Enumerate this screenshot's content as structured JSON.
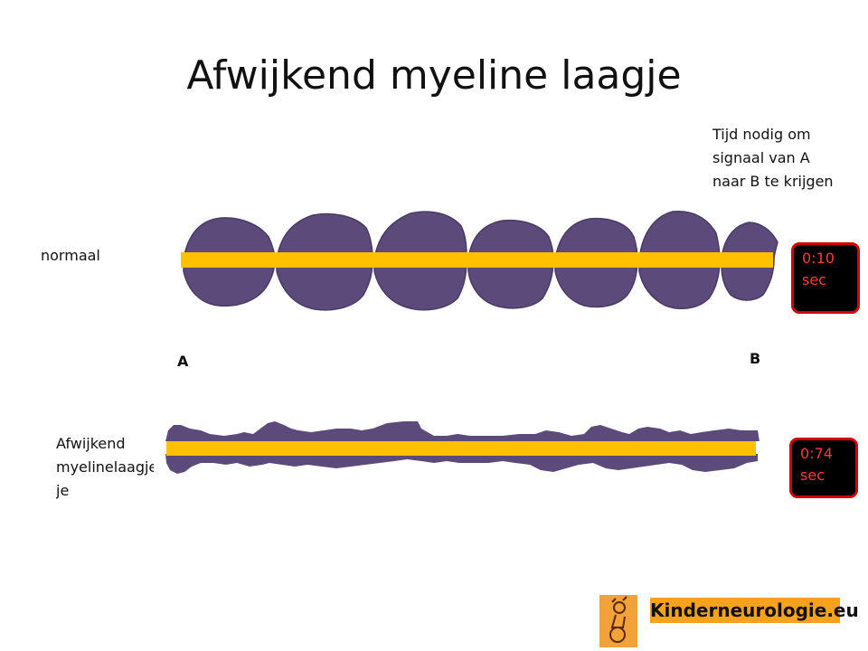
{
  "title": "Afwijkend myeline laagje",
  "note": [
    "Tijd nodig om",
    "signaal van A",
    "naar B te krijgen"
  ],
  "rows": {
    "normal_label": "normaal",
    "abnormal_label": [
      "Afwijkend",
      "myelinelaagje",
      "je"
    ]
  },
  "points": {
    "a": "A",
    "b": "B"
  },
  "timers": {
    "normal": [
      "0:10",
      "sec"
    ],
    "abnormal": [
      "0:74",
      "sec"
    ]
  },
  "logo": {
    "text": "Kinderneurologie.eu"
  },
  "colors": {
    "myelin": "#5c4a7a",
    "axon": "#ffc000",
    "timer_bg": "#000000",
    "timer_border": "#d40000",
    "timer_text": "#ff3b3b",
    "logo_bg": "#f7a21c"
  }
}
